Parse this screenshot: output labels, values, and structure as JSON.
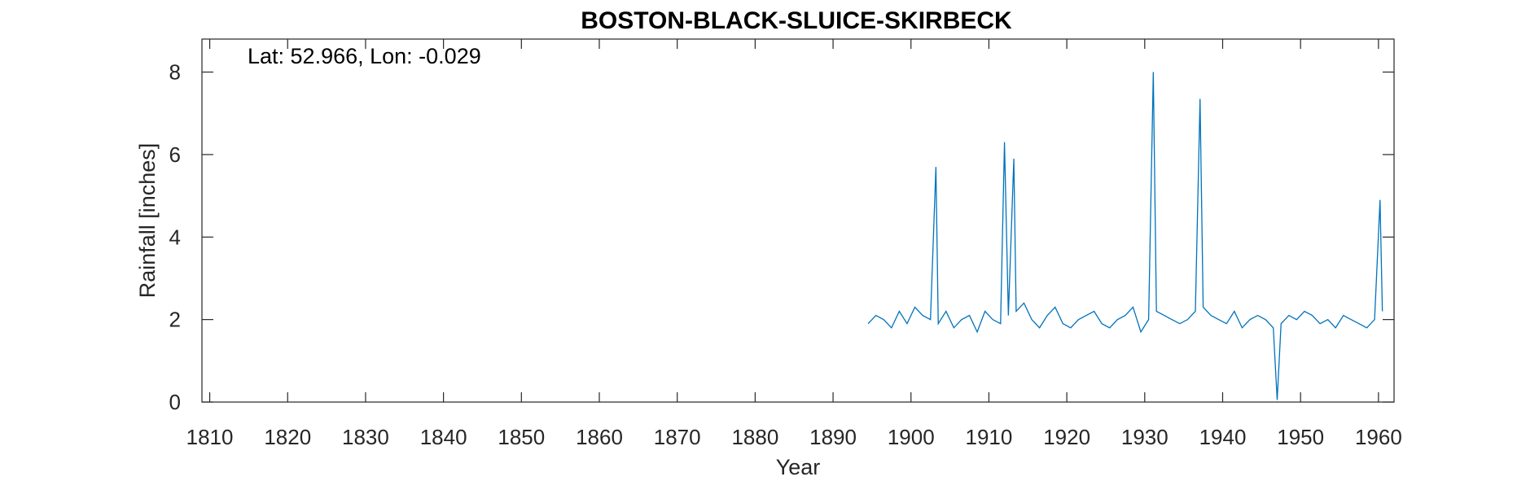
{
  "chart_data": {
    "type": "line",
    "title": "BOSTON-BLACK-SLUICE-SKIRBECK",
    "annotation": "Lat: 52.966, Lon: -0.029",
    "xlabel": "Year",
    "ylabel": "Rainfall [inches]",
    "xlim": [
      1809,
      1962
    ],
    "ylim": [
      0,
      8.8
    ],
    "xticks": [
      1810,
      1820,
      1830,
      1840,
      1850,
      1860,
      1870,
      1880,
      1890,
      1900,
      1910,
      1920,
      1930,
      1940,
      1950,
      1960
    ],
    "yticks": [
      0,
      2,
      4,
      6,
      8
    ],
    "grid": false,
    "line_color": "#0072BD",
    "series": [
      {
        "x": [
          1894.5,
          1895.5,
          1896.5,
          1897.5,
          1898.5,
          1899.5,
          1900.5,
          1901.5,
          1902.5,
          1903.2,
          1903.5,
          1904.5,
          1905.5,
          1906.5,
          1907.5,
          1908.5,
          1909.5,
          1910.5,
          1911.5,
          1912.0,
          1912.5,
          1913.2,
          1913.5,
          1914.5,
          1915.5,
          1916.5,
          1917.5,
          1918.5,
          1919.5,
          1920.5,
          1921.5,
          1922.5,
          1923.5,
          1924.5,
          1925.5,
          1926.5,
          1927.5,
          1928.5,
          1929.5,
          1930.5,
          1931.1,
          1931.5,
          1932.5,
          1933.5,
          1934.5,
          1935.5,
          1936.5,
          1937.1,
          1937.5,
          1938.5,
          1939.5,
          1940.5,
          1941.5,
          1942.5,
          1943.5,
          1944.5,
          1945.5,
          1946.5,
          1947.0,
          1947.5,
          1948.5,
          1949.5,
          1950.5,
          1951.5,
          1952.5,
          1953.5,
          1954.5,
          1955.5,
          1956.5,
          1957.5,
          1958.5,
          1959.5,
          1960.2,
          1960.5
        ],
        "y": [
          1.9,
          2.1,
          2.0,
          1.8,
          2.2,
          1.9,
          2.3,
          2.1,
          2.0,
          5.7,
          1.9,
          2.2,
          1.8,
          2.0,
          2.1,
          1.7,
          2.2,
          2.0,
          1.9,
          6.3,
          2.1,
          5.9,
          2.2,
          2.4,
          2.0,
          1.8,
          2.1,
          2.3,
          1.9,
          1.8,
          2.0,
          2.1,
          2.2,
          1.9,
          1.8,
          2.0,
          2.1,
          2.3,
          1.7,
          2.0,
          8.0,
          2.2,
          2.1,
          2.0,
          1.9,
          2.0,
          2.2,
          7.35,
          2.3,
          2.1,
          2.0,
          1.9,
          2.2,
          1.8,
          2.0,
          2.1,
          2.0,
          1.8,
          0.05,
          1.9,
          2.1,
          2.0,
          2.2,
          2.1,
          1.9,
          2.0,
          1.8,
          2.1,
          2.0,
          1.9,
          1.8,
          2.0,
          4.9,
          2.2
        ]
      }
    ]
  }
}
